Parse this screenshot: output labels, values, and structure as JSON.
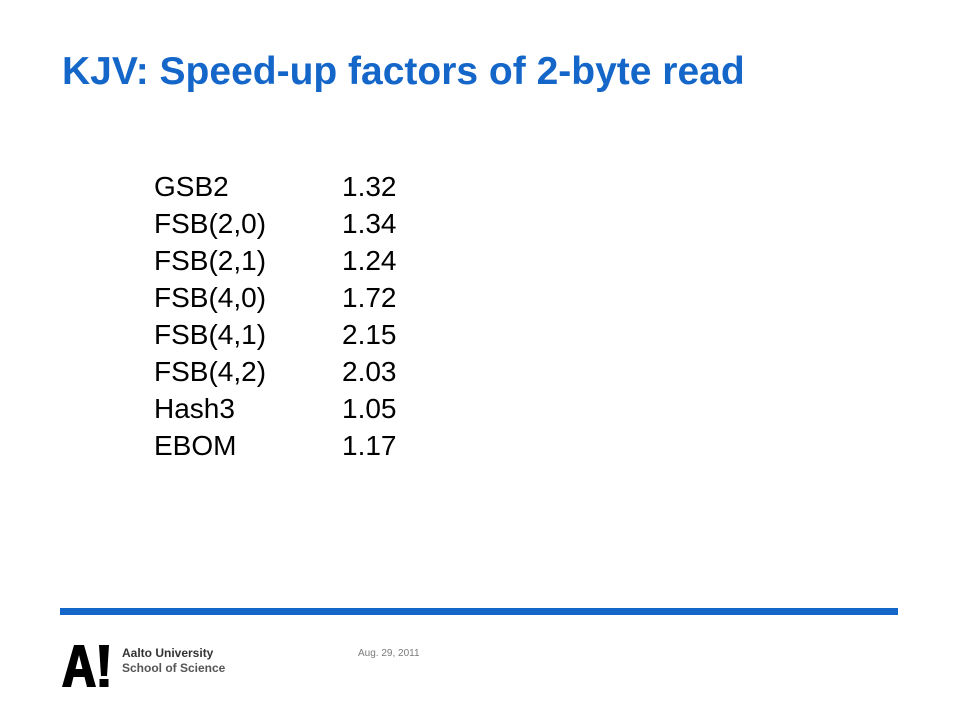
{
  "slide": {
    "title": "KJV: Speed-up factors of 2-byte read",
    "title_color": "#1466c8"
  },
  "results": [
    {
      "method": "GSB2",
      "value": "1.32"
    },
    {
      "method": "FSB(2,0)",
      "value": "1.34"
    },
    {
      "method": "FSB(2,1)",
      "value": "1.24"
    },
    {
      "method": "FSB(4,0)",
      "value": "1.72"
    },
    {
      "method": "FSB(4,1)",
      "value": "2.15"
    },
    {
      "method": "FSB(4,2)",
      "value": "2.03"
    },
    {
      "method": "Hash3",
      "value": "1.05"
    },
    {
      "method": "EBOM",
      "value": "1.17"
    }
  ],
  "footer": {
    "logo_line1": "Aalto University",
    "logo_line2": "School of Science",
    "logo_mark_text": "A!",
    "date": "Aug. 29, 2011",
    "rule_color": "#1466c8"
  }
}
